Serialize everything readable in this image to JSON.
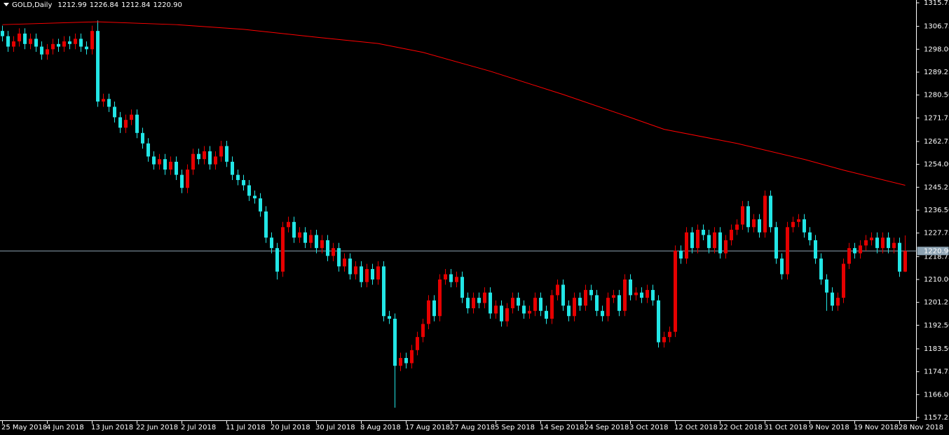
{
  "chart_data": {
    "type": "candlestick",
    "symbol": "GOLD,Daily",
    "header_values": [
      1212.99,
      1226.84,
      1212.84,
      {
        "value": 1220.9,
        "label": "1220.90"
      }
    ],
    "current_price": {
      "value": 1220.9,
      "label": "1220.90"
    },
    "bull_color": "#e60000",
    "bear_color": "#22e6e6",
    "ylim": [
      1157.25,
      1315.75
    ],
    "yticks": [
      {
        "value": 1315.75,
        "label": "1315.75"
      },
      {
        "value": 1306.75,
        "label": "1306.75"
      },
      {
        "value": 1298.0,
        "label": "1298.00"
      },
      {
        "value": 1289.25,
        "label": "1289.25"
      },
      {
        "value": 1280.5,
        "label": "1280.50"
      },
      {
        "value": 1271.75,
        "label": "1271.75"
      },
      {
        "value": 1262.75,
        "label": "1262.75"
      },
      {
        "value": 1254.0,
        "label": "1254.00"
      },
      {
        "value": 1245.25,
        "label": "1245.25"
      },
      {
        "value": 1236.5,
        "label": "1236.50"
      },
      {
        "value": 1227.75,
        "label": "1227.75"
      },
      {
        "value": 1218.75,
        "label": "1218.75"
      },
      {
        "value": 1210.0,
        "label": "1210.00"
      },
      {
        "value": 1201.25,
        "label": "1201.25"
      },
      {
        "value": 1192.5,
        "label": "1192.50"
      },
      {
        "value": 1183.5,
        "label": "1183.50"
      },
      {
        "value": 1174.75,
        "label": "1174.75"
      },
      {
        "value": 1166.0,
        "label": "1166.00"
      },
      {
        "value": 1157.25,
        "label": "1157.25"
      }
    ],
    "categories": [
      "25 May 2018",
      null,
      null,
      null,
      null,
      null,
      null,
      null,
      "4 Jun 2018",
      null,
      null,
      null,
      null,
      null,
      null,
      null,
      "13 Jun 2018",
      null,
      null,
      null,
      null,
      null,
      null,
      null,
      "22 Jun 2018",
      null,
      null,
      null,
      null,
      null,
      null,
      null,
      "2 Jul 2018",
      null,
      null,
      null,
      null,
      null,
      null,
      null,
      "11 Jul 2018",
      null,
      null,
      null,
      null,
      null,
      null,
      null,
      "20 Jul 2018",
      null,
      null,
      null,
      null,
      null,
      null,
      null,
      "30 Jul 2018",
      null,
      null,
      null,
      null,
      null,
      null,
      null,
      "8 Aug 2018",
      null,
      null,
      null,
      null,
      null,
      null,
      null,
      "17 Aug 2018",
      null,
      null,
      null,
      null,
      null,
      null,
      null,
      "27 Aug 2018",
      null,
      null,
      null,
      null,
      null,
      null,
      null,
      "5 Sep 2018",
      null,
      null,
      null,
      null,
      null,
      null,
      null,
      "14 Sep 2018",
      null,
      null,
      null,
      null,
      null,
      null,
      null,
      "24 Sep 2018",
      null,
      null,
      null,
      null,
      null,
      null,
      null,
      "3 Oct 2018",
      null,
      null,
      null,
      null,
      null,
      null,
      null,
      "12 Oct 2018",
      null,
      null,
      null,
      null,
      null,
      null,
      null,
      "22 Oct 2018",
      null,
      null,
      null,
      null,
      null,
      null,
      null,
      "31 Oct 2018",
      null,
      null,
      null,
      null,
      null,
      null,
      null,
      "9 Nov 2018",
      null,
      null,
      null,
      null,
      null,
      null,
      null,
      "19 Nov 2018",
      null,
      null,
      null,
      null,
      null,
      null,
      null,
      "28 Nov 2018",
      null
    ],
    "open": [
      1305,
      1303,
      1299,
      1301,
      1304,
      1300,
      1302,
      1299,
      1296,
      1298,
      1300,
      1299,
      1301,
      1300,
      1302,
      1299,
      1298,
      1305,
      1278,
      1279,
      1276,
      1272,
      1268,
      1271,
      1273,
      1266,
      1262,
      1257,
      1254,
      1256,
      1252,
      1255,
      1250,
      1245,
      1252,
      1258,
      1256,
      1259,
      1254,
      1257,
      1261,
      1255,
      1250,
      1248,
      1246,
      1242,
      1241,
      1236,
      1226,
      1222,
      1213,
      1230,
      1232,
      1226,
      1228,
      1224,
      1227,
      1222,
      1225,
      1219,
      1222,
      1215,
      1218,
      1212,
      1215,
      1209,
      1214,
      1210,
      1215,
      1196,
      1195,
      1177,
      1180,
      1178,
      1183,
      1188,
      1193,
      1202,
      1196,
      1210,
      1212,
      1209,
      1211,
      1203,
      1199,
      1203,
      1201,
      1205,
      1197,
      1200,
      1194,
      1199,
      1203,
      1200,
      1197,
      1198,
      1203,
      1198,
      1195,
      1204,
      1208,
      1200,
      1196,
      1203,
      1200,
      1206,
      1204,
      1198,
      1196,
      1203,
      1204,
      1198,
      1210,
      1204,
      1205,
      1203,
      1206,
      1202,
      1186,
      1188,
      1190,
      1221,
      1218,
      1228,
      1222,
      1229,
      1227,
      1222,
      1228,
      1220,
      1225,
      1229,
      1231,
      1238,
      1230,
      1233,
      1228,
      1242,
      1230,
      1218,
      1212,
      1230,
      1232,
      1233,
      1228,
      1225,
      1218,
      1210,
      1205,
      1200,
      1203,
      1216,
      1222,
      1220,
      1223,
      1225,
      1226,
      1222,
      1226,
      1222,
      1224,
      1212.99
    ],
    "high": [
      1307,
      1305,
      1303,
      1306,
      1306,
      1304,
      1304,
      1301,
      1300,
      1302,
      1302,
      1303,
      1303,
      1304,
      1304,
      1301,
      1307,
      1309,
      1281,
      1281,
      1278,
      1274,
      1273,
      1275,
      1275,
      1268,
      1264,
      1259,
      1258,
      1258,
      1257,
      1257,
      1252,
      1254,
      1260,
      1260,
      1261,
      1261,
      1259,
      1263,
      1263,
      1257,
      1252,
      1250,
      1248,
      1244,
      1243,
      1238,
      1228,
      1224,
      1232,
      1234,
      1234,
      1230,
      1230,
      1229,
      1229,
      1227,
      1227,
      1224,
      1224,
      1220,
      1220,
      1217,
      1217,
      1216,
      1216,
      1217,
      1217,
      1198,
      1197,
      1182,
      1182,
      1185,
      1190,
      1195,
      1204,
      1204,
      1212,
      1214,
      1214,
      1213,
      1213,
      1205,
      1205,
      1205,
      1207,
      1207,
      1202,
      1202,
      1201,
      1205,
      1205,
      1202,
      1200,
      1205,
      1205,
      1200,
      1206,
      1210,
      1210,
      1202,
      1205,
      1205,
      1208,
      1208,
      1206,
      1200,
      1205,
      1206,
      1206,
      1212,
      1212,
      1207,
      1207,
      1208,
      1208,
      1204,
      1190,
      1192,
      1223,
      1223,
      1230,
      1230,
      1231,
      1231,
      1229,
      1230,
      1230,
      1227,
      1231,
      1233,
      1240,
      1240,
      1235,
      1235,
      1244,
      1244,
      1232,
      1220,
      1232,
      1234,
      1235,
      1235,
      1230,
      1227,
      1220,
      1212,
      1207,
      1205,
      1218,
      1224,
      1224,
      1225,
      1227,
      1228,
      1228,
      1228,
      1228,
      1226,
      1226,
      1226.84
    ],
    "low": [
      1301,
      1297,
      1297,
      1299,
      1298,
      1298,
      1297,
      1294,
      1294,
      1296,
      1297,
      1297,
      1298,
      1298,
      1297,
      1296,
      1296,
      1276,
      1276,
      1274,
      1270,
      1266,
      1266,
      1269,
      1264,
      1260,
      1255,
      1252,
      1252,
      1250,
      1250,
      1248,
      1243,
      1243,
      1250,
      1254,
      1254,
      1252,
      1252,
      1255,
      1253,
      1248,
      1246,
      1244,
      1240,
      1239,
      1234,
      1224,
      1220,
      1210,
      1211,
      1228,
      1224,
      1224,
      1222,
      1222,
      1220,
      1220,
      1217,
      1217,
      1213,
      1213,
      1210,
      1210,
      1207,
      1207,
      1208,
      1208,
      1194,
      1193,
      1161,
      1175,
      1176,
      1176,
      1181,
      1186,
      1191,
      1194,
      1194,
      1208,
      1207,
      1207,
      1201,
      1197,
      1197,
      1199,
      1199,
      1195,
      1195,
      1192,
      1192,
      1197,
      1198,
      1195,
      1195,
      1196,
      1196,
      1193,
      1193,
      1202,
      1198,
      1194,
      1194,
      1198,
      1198,
      1202,
      1196,
      1194,
      1194,
      1201,
      1196,
      1196,
      1202,
      1202,
      1201,
      1201,
      1200,
      1184,
      1184,
      1186,
      1188,
      1216,
      1216,
      1220,
      1220,
      1225,
      1220,
      1220,
      1218,
      1218,
      1223,
      1227,
      1229,
      1228,
      1228,
      1226,
      1226,
      1228,
      1216,
      1210,
      1210,
      1228,
      1230,
      1226,
      1223,
      1216,
      1208,
      1198,
      1198,
      1198,
      1201,
      1214,
      1218,
      1218,
      1221,
      1223,
      1220,
      1220,
      1220,
      1220,
      1211,
      1212.84
    ],
    "close": [
      1303,
      1299,
      1301,
      1304,
      1300,
      1302,
      1299,
      1296,
      1298,
      1300,
      1299,
      1301,
      1300,
      1302,
      1299,
      1298,
      1305,
      1278,
      1279,
      1276,
      1272,
      1268,
      1271,
      1273,
      1266,
      1262,
      1257,
      1254,
      1256,
      1252,
      1255,
      1250,
      1245,
      1252,
      1258,
      1256,
      1259,
      1254,
      1257,
      1261,
      1255,
      1250,
      1248,
      1246,
      1242,
      1241,
      1236,
      1226,
      1222,
      1213,
      1230,
      1232,
      1226,
      1228,
      1224,
      1227,
      1222,
      1225,
      1219,
      1222,
      1215,
      1218,
      1212,
      1215,
      1209,
      1214,
      1210,
      1215,
      1196,
      1195,
      1177,
      1180,
      1178,
      1183,
      1188,
      1193,
      1202,
      1196,
      1210,
      1212,
      1209,
      1211,
      1203,
      1199,
      1203,
      1201,
      1205,
      1197,
      1200,
      1194,
      1199,
      1203,
      1200,
      1197,
      1198,
      1203,
      1198,
      1195,
      1204,
      1208,
      1200,
      1196,
      1203,
      1200,
      1206,
      1204,
      1198,
      1196,
      1203,
      1204,
      1198,
      1210,
      1204,
      1205,
      1203,
      1206,
      1202,
      1186,
      1188,
      1190,
      1221,
      1218,
      1228,
      1222,
      1229,
      1227,
      1222,
      1228,
      1220,
      1225,
      1229,
      1231,
      1238,
      1230,
      1233,
      1228,
      1242,
      1230,
      1218,
      1212,
      1230,
      1232,
      1233,
      1228,
      1225,
      1218,
      1210,
      1205,
      1200,
      1203,
      1216,
      1222,
      1220,
      1223,
      1225,
      1226,
      1222,
      1226,
      1222,
      1224,
      1213,
      1220.9
    ],
    "moving_average": {
      "color": "#ff0000",
      "x": [
        0,
        17,
        31,
        43,
        56,
        67,
        75,
        87,
        100,
        112,
        118,
        131,
        143,
        150,
        161
      ],
      "values": [
        1307.4,
        1308.5,
        1307.4,
        1305.6,
        1302.6,
        1300.2,
        1296.8,
        1289.6,
        1280.7,
        1271.9,
        1267.4,
        1262.0,
        1255.9,
        1251.8,
        1246.0
      ]
    }
  }
}
